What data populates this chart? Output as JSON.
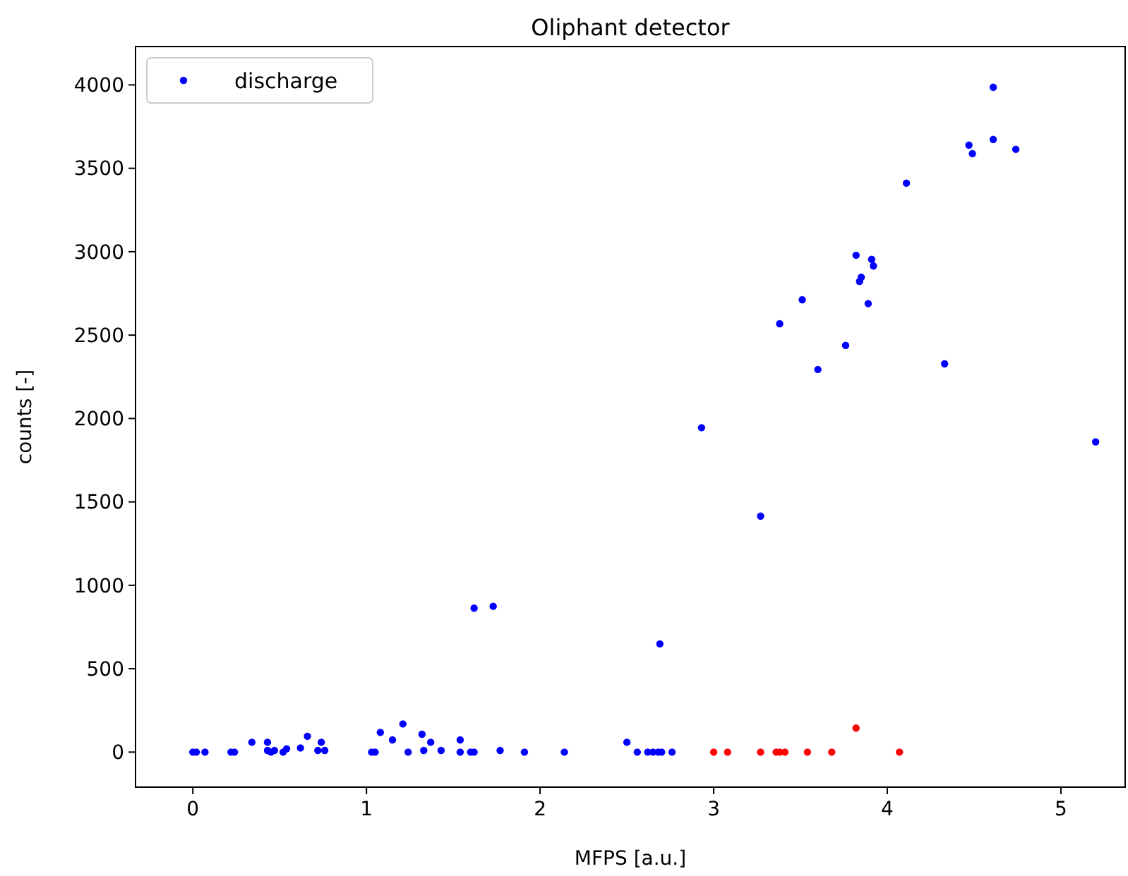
{
  "chart_data": {
    "type": "scatter",
    "title": "Oliphant detector",
    "xlabel": "MFPS [a.u.]",
    "ylabel": "counts [-]",
    "xlim": [
      -0.33,
      5.37
    ],
    "xticks": [
      0,
      1,
      2,
      3,
      4,
      5
    ],
    "ylim": [
      -210,
      4230
    ],
    "yticks": [
      0,
      500,
      1000,
      1500,
      2000,
      2500,
      3000,
      3500,
      4000
    ],
    "grid": false,
    "legend": "top left",
    "marker": "circle",
    "series": [
      {
        "name": "discharge",
        "color": "#0000ff",
        "x": [
          0,
          0.02,
          0.07,
          0.22,
          0.24,
          0.34,
          0.43,
          0.43,
          0.45,
          0.47,
          0.52,
          0.54,
          0.62,
          0.66,
          0.74,
          0.72,
          0.76,
          1.03,
          1.05,
          1.08,
          1.15,
          1.21,
          1.24,
          1.32,
          1.37,
          1.33,
          1.43,
          1.54,
          1.54,
          1.6,
          1.62,
          1.77,
          1.91,
          2.14,
          2.5,
          2.56,
          2.62,
          2.65,
          2.68,
          2.7,
          2.76,
          4.61,
          4.61,
          4.47,
          4.49,
          4.74,
          4.11,
          3.82,
          3.91,
          3.92,
          3.85,
          3.84,
          3.51,
          3.89,
          3.38,
          3.76,
          3.6,
          4.33,
          2.93,
          5.2,
          3.27,
          1.62,
          1.73,
          2.69
        ],
        "values": [
          0,
          0,
          0,
          0,
          0,
          59,
          59,
          10,
          0,
          10,
          0,
          20,
          25,
          95,
          59,
          10,
          10,
          0,
          0,
          118,
          73,
          169,
          0,
          107,
          59,
          10,
          10,
          73,
          0,
          0,
          0,
          10,
          0,
          0,
          59,
          0,
          0,
          0,
          0,
          0,
          0,
          3986,
          3673,
          3639,
          3588,
          3614,
          3411,
          2979,
          2954,
          2915,
          2847,
          2822,
          2712,
          2689,
          2568,
          2438,
          2294,
          2328,
          1945,
          1860,
          1415,
          863,
          874,
          649
        ]
      },
      {
        "color": "#ff0000",
        "x": [
          3.0,
          3.08,
          3.27,
          3.36,
          3.38,
          3.41,
          3.54,
          3.68,
          3.82,
          4.07
        ],
        "values": [
          0,
          0,
          0,
          0,
          0,
          0,
          0,
          0,
          144,
          0
        ]
      }
    ]
  }
}
